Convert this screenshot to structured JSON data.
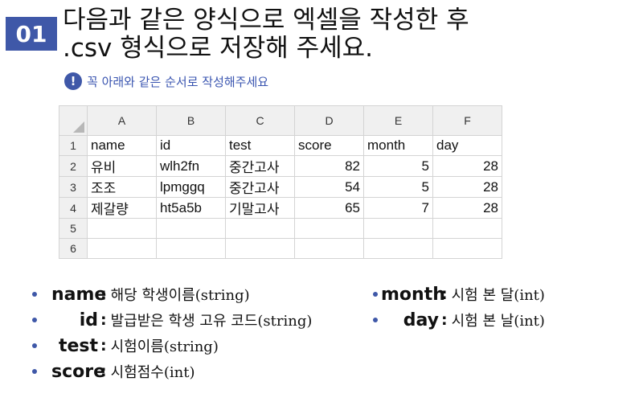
{
  "step": {
    "number": "01"
  },
  "title": {
    "line1": "다음과 같은 양식으로 엑셀을 작성한 후",
    "line2": ".csv 형식으로 저장해 주세요."
  },
  "notice": {
    "icon": "exclamation-icon",
    "text": "꼭 아래와 같은 순서로 작성해주세요"
  },
  "sheet": {
    "columns": [
      "A",
      "B",
      "C",
      "D",
      "E",
      "F"
    ],
    "row_numbers": [
      "1",
      "2",
      "3",
      "4",
      "5",
      "6"
    ],
    "rows": [
      [
        "name",
        "id",
        "test",
        "score",
        "month",
        "day"
      ],
      [
        "유비",
        "wlh2fn",
        "중간고사",
        "82",
        "5",
        "28"
      ],
      [
        "조조",
        "lpmggq",
        "중간고사",
        "54",
        "5",
        "28"
      ],
      [
        "제갈량",
        "ht5a5b",
        "기말고사",
        "65",
        "7",
        "28"
      ]
    ]
  },
  "fields_left": [
    {
      "name": "name",
      "desc": "해당 학생이름(string)"
    },
    {
      "name": "id",
      "desc": "발급받은 학생 고유 코드(string)"
    },
    {
      "name": "test",
      "desc": "시험이름(string)"
    },
    {
      "name": "score",
      "desc": "시험점수(int)"
    }
  ],
  "fields_right": [
    {
      "name": "month",
      "desc": "시험 본 달(int)"
    },
    {
      "name": "day",
      "desc": "시험 본 날(int)"
    }
  ],
  "colors": {
    "accent": "#3f58a8",
    "notice_text": "#3a55b0",
    "grid_line": "#d4d4d4",
    "header_bg": "#f0f0f0"
  }
}
